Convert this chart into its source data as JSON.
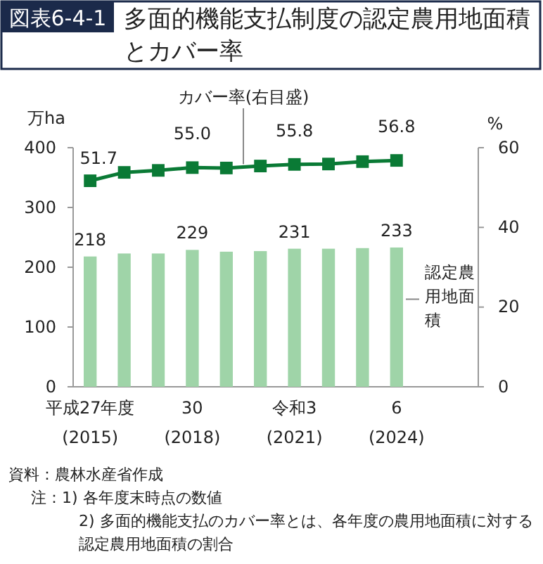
{
  "chart_data": {
    "type": "bar",
    "subtitle": "図表6-4-1",
    "title": "多面的機能支払制度の認定農用地面積とカバー率",
    "categories": [
      "平成27年度\n(2015)",
      null,
      null,
      "30\n(2018)",
      null,
      null,
      "令和3\n(2021)",
      null,
      null,
      "6\n(2024)"
    ],
    "series": [
      {
        "name": "認定農用地面積",
        "color": "#9fd4a8",
        "values": [
          218,
          223,
          223,
          229,
          226,
          227,
          231,
          231,
          232,
          233
        ],
        "value_labels": [
          "218",
          null,
          null,
          "229",
          null,
          null,
          "231",
          null,
          null,
          "233"
        ]
      },
      {
        "name": "カバー率(右目盛)",
        "type": "line",
        "axis": "y2",
        "color": "#0a7a35",
        "marker": "square",
        "values": [
          51.7,
          53.8,
          54.3,
          55.0,
          54.9,
          55.4,
          55.8,
          55.9,
          56.5,
          56.8
        ],
        "value_labels": [
          "51.7",
          null,
          null,
          "55.0",
          null,
          null,
          "55.8",
          null,
          null,
          "56.8"
        ]
      }
    ],
    "ylabel": "万ha",
    "y2label": "%",
    "ylim": [
      0,
      400
    ],
    "yticks": [
      0,
      100,
      200,
      300,
      400
    ],
    "y2lim": [
      0,
      60
    ],
    "y2ticks": [
      0,
      20,
      40,
      60
    ],
    "grid": false,
    "annotations": [
      "資料：農林水産省作成",
      "注：1) 各年度末時点の数値",
      "2) 多面的機能支払のカバー率とは、各年度の農用地面積に対する認定農用地面積の割合"
    ]
  }
}
